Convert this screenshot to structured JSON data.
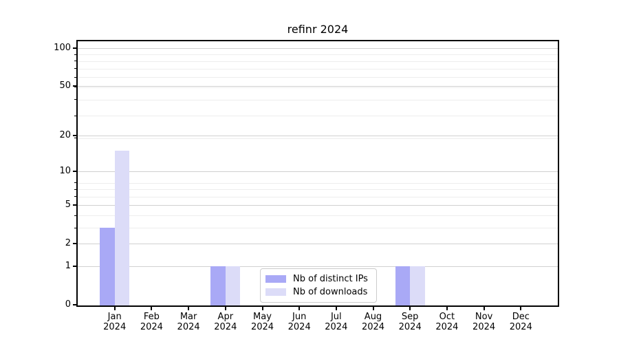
{
  "chart_data": {
    "type": "bar",
    "title": "refinr 2024",
    "year": "2024",
    "categories": [
      "Jan",
      "Feb",
      "Mar",
      "Apr",
      "May",
      "Jun",
      "Jul",
      "Aug",
      "Sep",
      "Oct",
      "Nov",
      "Dec"
    ],
    "series": [
      {
        "name": "Nb of distinct IPs",
        "color": "#a9a9f6",
        "values": [
          3,
          0,
          0,
          1,
          0,
          0,
          0,
          0,
          1,
          0,
          0,
          0
        ]
      },
      {
        "name": "Nb of downloads",
        "color": "#dcdcf8",
        "values": [
          15,
          0,
          0,
          1,
          0,
          0,
          0,
          0,
          1,
          0,
          0,
          0
        ]
      }
    ],
    "xlabel": "",
    "ylabel": "",
    "yscale": "log10(value+1)",
    "ylim": [
      0,
      113
    ],
    "yticks": [
      "100",
      "50",
      "20",
      "10",
      "5",
      "2",
      "1",
      "0"
    ],
    "minor_yticks": [
      1,
      2,
      3,
      4,
      5,
      6,
      7,
      8,
      19,
      29,
      39,
      49,
      59,
      69,
      79,
      89
    ],
    "grid": "horizontal major and minor, light gray",
    "legend_position": "bottom-center-inside",
    "colors": {
      "grid_major": "#d0d0d0",
      "grid_minor": "#ededed",
      "spine": "#000000",
      "background": "#ffffff"
    }
  }
}
